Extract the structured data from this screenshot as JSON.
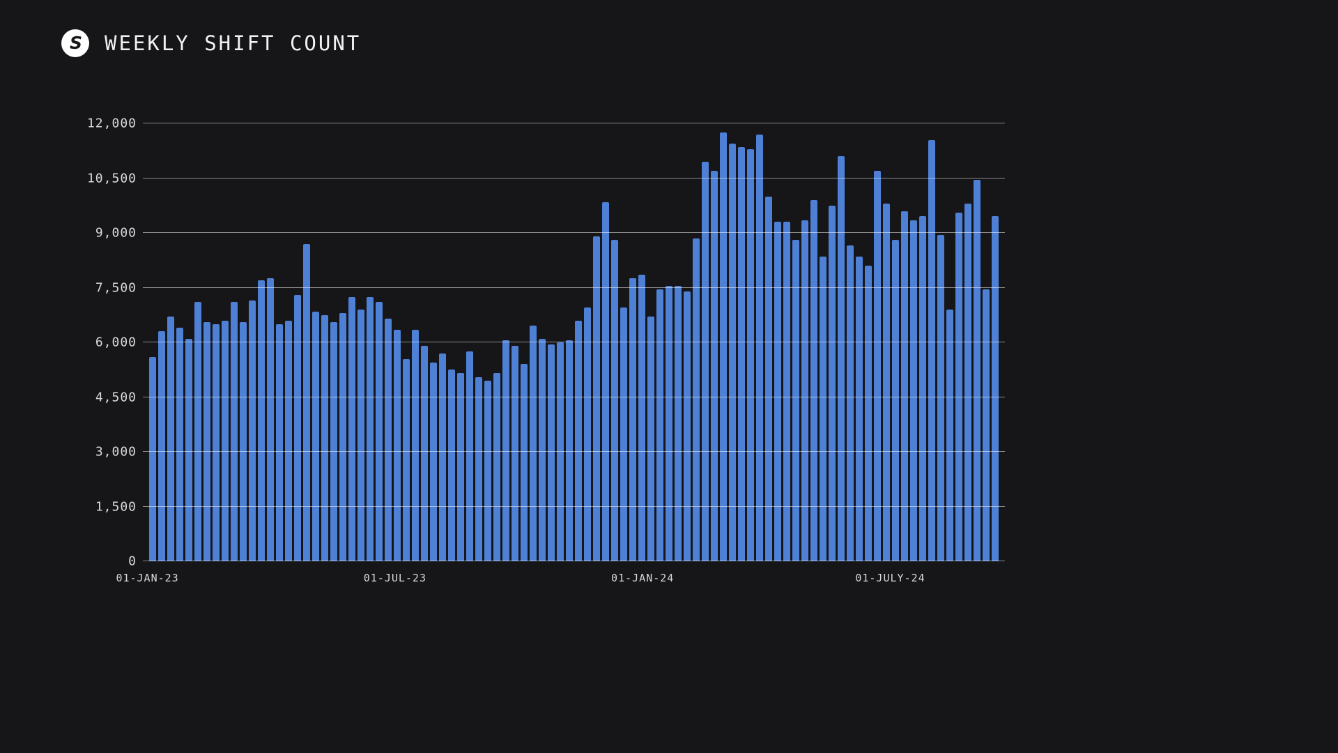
{
  "header": {
    "title": "WEEKLY SHIFT COUNT",
    "logo_glyph": "S"
  },
  "colors": {
    "background": "#161619",
    "bar": "#4e80d6",
    "gridline": "rgba(255,255,255,0.5)",
    "axis_text": "#d9d9d9",
    "title_text": "#f2f2f2",
    "logo_fill": "#ffffff",
    "logo_glyph_color": "#18181b"
  },
  "chart_data": {
    "type": "bar",
    "title": "WEEKLY SHIFT COUNT",
    "xlabel": "",
    "ylabel": "",
    "ylim": [
      0,
      12000
    ],
    "grid": "horizontal",
    "legend": "none",
    "y_ticks": [
      {
        "value": 0,
        "label": "0"
      },
      {
        "value": 1500,
        "label": "1,500"
      },
      {
        "value": 3000,
        "label": "3,000"
      },
      {
        "value": 4500,
        "label": "4,500"
      },
      {
        "value": 6000,
        "label": "6,000"
      },
      {
        "value": 7500,
        "label": "7,500"
      },
      {
        "value": 9000,
        "label": "9,000"
      },
      {
        "value": 10500,
        "label": "10,500"
      },
      {
        "value": 12000,
        "label": "12,000"
      }
    ],
    "x_ticks": [
      {
        "index": 0,
        "label": "01-JAN-23"
      },
      {
        "index": 27,
        "label": "01-JUL-23"
      },
      {
        "index": 54,
        "label": "01-JAN-24"
      },
      {
        "index": 81,
        "label": "01-JULY-24"
      }
    ],
    "values": [
      5600,
      6300,
      6700,
      6400,
      6100,
      7100,
      6550,
      6500,
      6600,
      7100,
      6550,
      7150,
      7700,
      7750,
      6500,
      6600,
      7300,
      8700,
      6850,
      6750,
      6550,
      6800,
      7250,
      6900,
      7250,
      7100,
      6650,
      6350,
      5550,
      6350,
      5900,
      5450,
      5700,
      5250,
      5150,
      5750,
      5050,
      4950,
      5150,
      6050,
      5900,
      5400,
      6450,
      6100,
      5950,
      6000,
      6050,
      6600,
      6950,
      8900,
      9850,
      8800,
      6950,
      7750,
      7850,
      6700,
      7450,
      7550,
      7550,
      7400,
      8850,
      10950,
      10700,
      11750,
      11450,
      11350,
      11300,
      11700,
      10000,
      9300,
      9300,
      8800,
      9350,
      9900,
      8350,
      9750,
      11100,
      8650,
      8350,
      8100,
      10700,
      9800,
      8800,
      9600,
      9350,
      9450,
      11550,
      8950,
      6900,
      9550,
      9800,
      10450,
      7450,
      9450
    ]
  }
}
